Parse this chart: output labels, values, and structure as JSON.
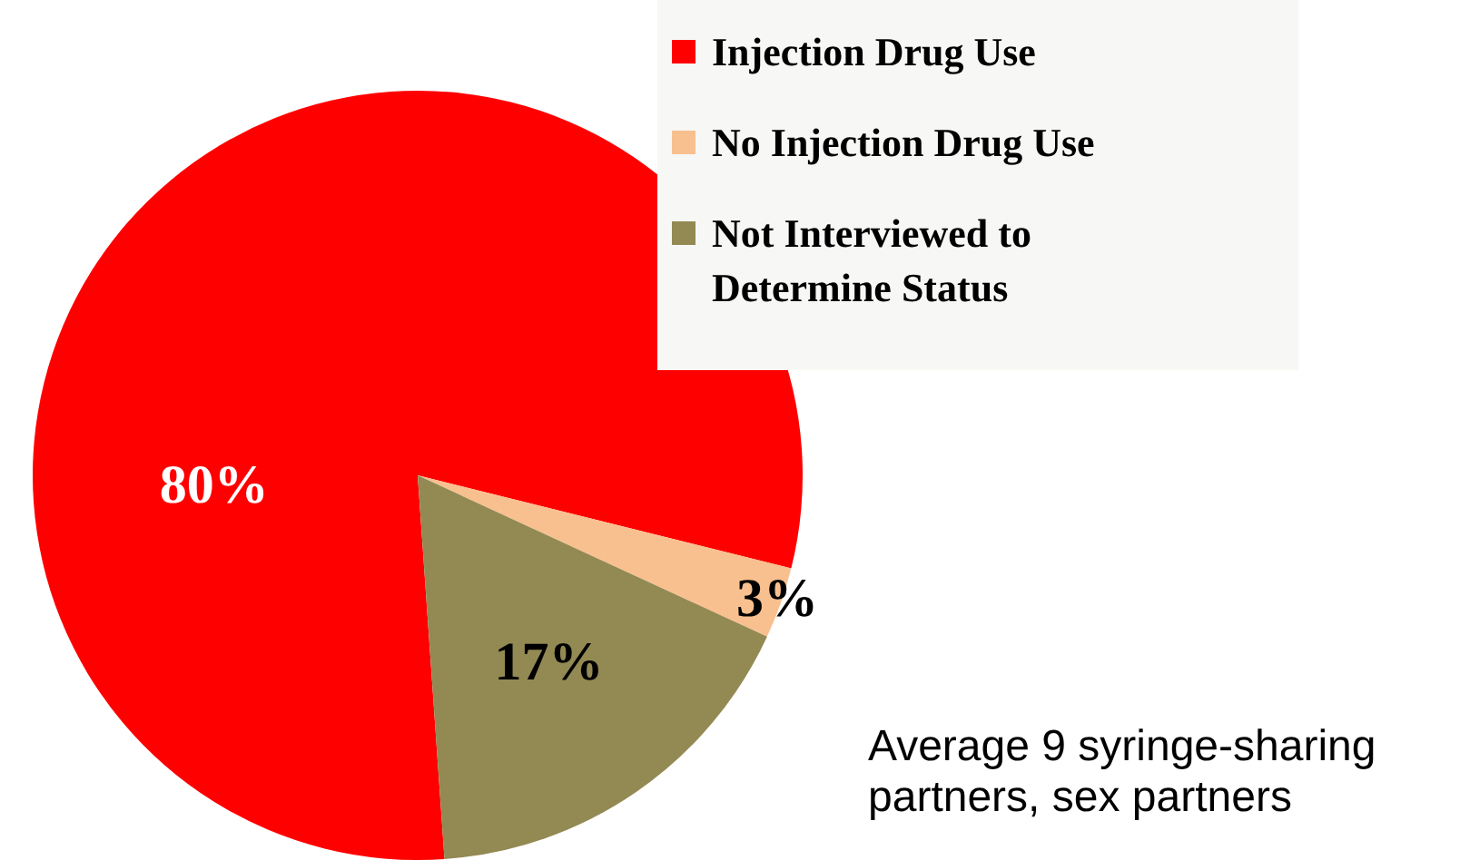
{
  "chart_data": {
    "type": "pie",
    "categories": [
      "Injection Drug Use",
      "No Injection Drug Use",
      "Not Interviewed to Determine Status"
    ],
    "values": [
      80,
      3,
      17
    ],
    "colors": [
      "#ff0000",
      "#f9c08f",
      "#938953"
    ],
    "value_labels": [
      "80%",
      "3%",
      "17%"
    ],
    "legend": "top right",
    "annotations": [
      "Average 9 syringe-sharing partners, sex partners"
    ]
  }
}
